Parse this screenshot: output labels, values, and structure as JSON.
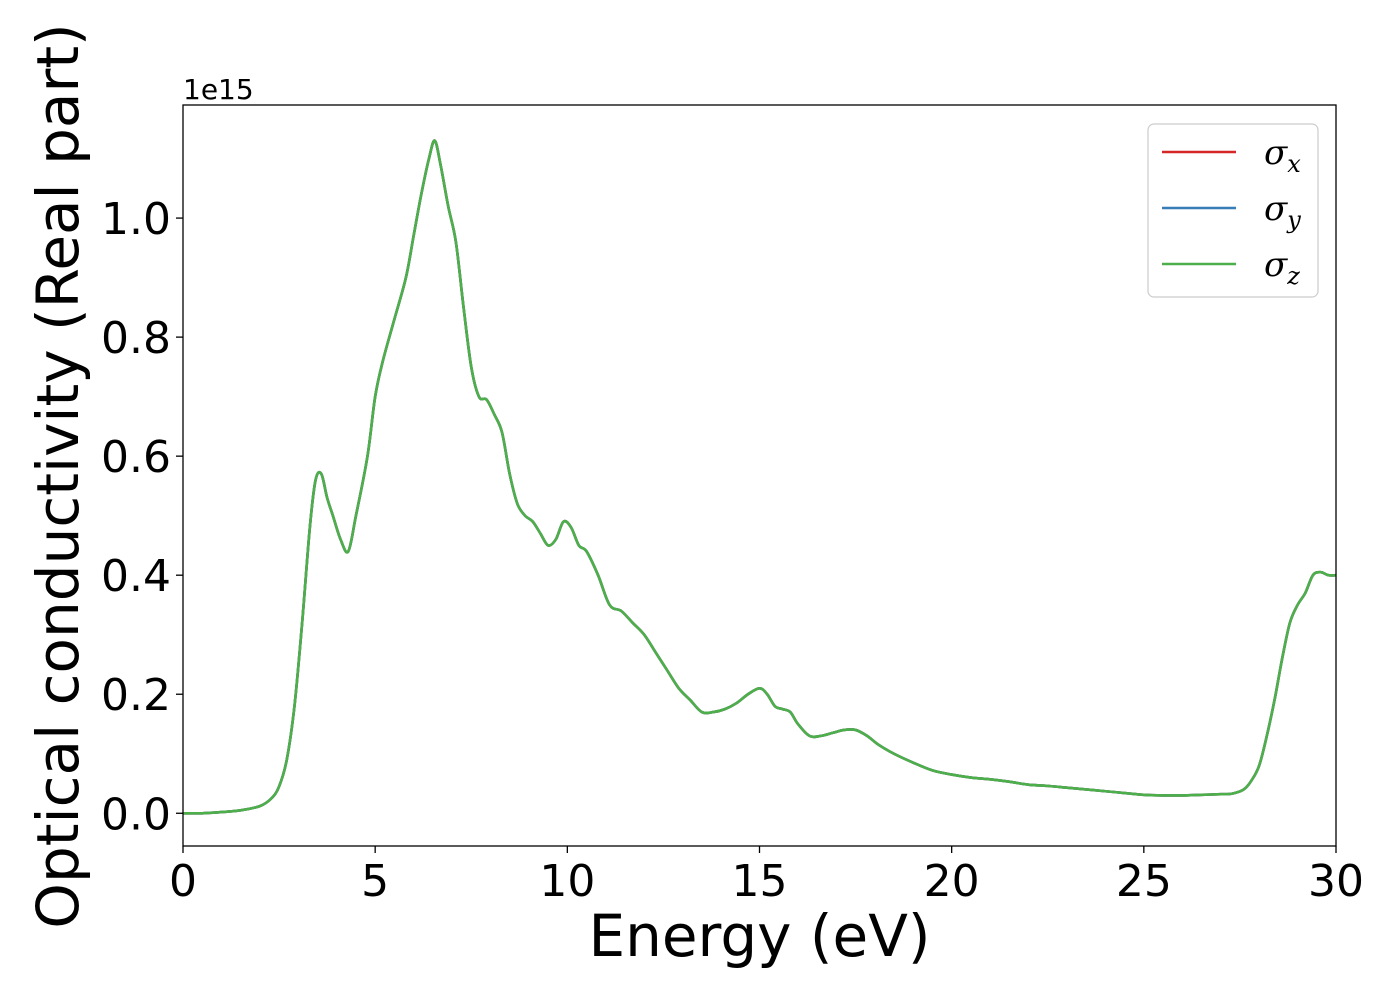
{
  "chart_data": {
    "type": "line",
    "xlabel": "Energy (eV)",
    "ylabel": "Optical conductivity (Real part)",
    "y_offset_label": "1e15",
    "xlim": [
      0,
      30
    ],
    "ylim": [
      -0.055,
      1.19
    ],
    "xticks": [
      0,
      5,
      10,
      15,
      20,
      25,
      30
    ],
    "xtick_labels": [
      "0",
      "5",
      "10",
      "15",
      "20",
      "25",
      "30"
    ],
    "yticks": [
      0.0,
      0.2,
      0.4,
      0.6,
      0.8,
      1.0
    ],
    "ytick_labels": [
      "0.0",
      "0.2",
      "0.4",
      "0.6",
      "0.8",
      "1.0"
    ],
    "grid": false,
    "legend_position": "top-right",
    "x": [
      0,
      0.5,
      1,
      1.5,
      2,
      2.3,
      2.5,
      2.7,
      2.9,
      3.1,
      3.3,
      3.45,
      3.6,
      3.75,
      3.9,
      4.1,
      4.3,
      4.5,
      4.8,
      5.0,
      5.2,
      5.5,
      5.8,
      6.0,
      6.2,
      6.4,
      6.55,
      6.7,
      6.9,
      7.1,
      7.3,
      7.5,
      7.7,
      7.9,
      8.1,
      8.3,
      8.5,
      8.7,
      8.9,
      9.1,
      9.3,
      9.5,
      9.7,
      9.9,
      10.1,
      10.3,
      10.5,
      10.8,
      11.1,
      11.4,
      11.7,
      12.0,
      12.3,
      12.6,
      12.9,
      13.2,
      13.5,
      13.8,
      14.1,
      14.4,
      14.7,
      15.0,
      15.2,
      15.4,
      15.6,
      15.8,
      16.0,
      16.3,
      16.6,
      16.9,
      17.2,
      17.5,
      17.8,
      18.1,
      18.5,
      19.0,
      19.5,
      20.0,
      20.5,
      21.0,
      21.5,
      22.0,
      22.5,
      23.0,
      23.5,
      24.0,
      24.5,
      25.0,
      25.5,
      26.0,
      26.5,
      27.0,
      27.3,
      27.6,
      27.8,
      28.0,
      28.2,
      28.4,
      28.6,
      28.8,
      29.0,
      29.2,
      29.4,
      29.6,
      29.8,
      30.0
    ],
    "series": [
      {
        "name": "σx",
        "color": "#d62728",
        "values": [
          0.0,
          0.0,
          0.002,
          0.005,
          0.012,
          0.025,
          0.045,
          0.09,
          0.18,
          0.32,
          0.48,
          0.56,
          0.57,
          0.53,
          0.5,
          0.46,
          0.44,
          0.5,
          0.6,
          0.7,
          0.76,
          0.83,
          0.9,
          0.97,
          1.04,
          1.1,
          1.13,
          1.09,
          1.02,
          0.96,
          0.85,
          0.75,
          0.7,
          0.695,
          0.67,
          0.64,
          0.57,
          0.52,
          0.5,
          0.49,
          0.47,
          0.45,
          0.46,
          0.49,
          0.48,
          0.45,
          0.44,
          0.4,
          0.35,
          0.34,
          0.32,
          0.3,
          0.27,
          0.24,
          0.21,
          0.19,
          0.17,
          0.17,
          0.175,
          0.185,
          0.2,
          0.21,
          0.2,
          0.18,
          0.175,
          0.17,
          0.15,
          0.13,
          0.13,
          0.135,
          0.14,
          0.14,
          0.13,
          0.115,
          0.1,
          0.085,
          0.072,
          0.065,
          0.06,
          0.057,
          0.053,
          0.048,
          0.046,
          0.043,
          0.04,
          0.037,
          0.034,
          0.031,
          0.03,
          0.03,
          0.031,
          0.032,
          0.033,
          0.04,
          0.055,
          0.08,
          0.13,
          0.19,
          0.26,
          0.32,
          0.35,
          0.37,
          0.4,
          0.405,
          0.4,
          0.4
        ]
      },
      {
        "name": "σy",
        "color": "#377eb8",
        "values": [
          0.0,
          0.0,
          0.002,
          0.005,
          0.012,
          0.025,
          0.045,
          0.09,
          0.18,
          0.32,
          0.48,
          0.56,
          0.57,
          0.53,
          0.5,
          0.46,
          0.44,
          0.5,
          0.6,
          0.7,
          0.76,
          0.83,
          0.9,
          0.97,
          1.04,
          1.1,
          1.13,
          1.09,
          1.02,
          0.96,
          0.85,
          0.75,
          0.7,
          0.695,
          0.67,
          0.64,
          0.57,
          0.52,
          0.5,
          0.49,
          0.47,
          0.45,
          0.46,
          0.49,
          0.48,
          0.45,
          0.44,
          0.4,
          0.35,
          0.34,
          0.32,
          0.3,
          0.27,
          0.24,
          0.21,
          0.19,
          0.17,
          0.17,
          0.175,
          0.185,
          0.2,
          0.21,
          0.2,
          0.18,
          0.175,
          0.17,
          0.15,
          0.13,
          0.13,
          0.135,
          0.14,
          0.14,
          0.13,
          0.115,
          0.1,
          0.085,
          0.072,
          0.065,
          0.06,
          0.057,
          0.053,
          0.048,
          0.046,
          0.043,
          0.04,
          0.037,
          0.034,
          0.031,
          0.03,
          0.03,
          0.031,
          0.032,
          0.033,
          0.04,
          0.055,
          0.08,
          0.13,
          0.19,
          0.26,
          0.32,
          0.35,
          0.37,
          0.4,
          0.405,
          0.4,
          0.4
        ]
      },
      {
        "name": "σz",
        "color": "#4daf4a",
        "values": [
          0.0,
          0.0,
          0.002,
          0.005,
          0.012,
          0.025,
          0.045,
          0.09,
          0.18,
          0.32,
          0.48,
          0.56,
          0.57,
          0.53,
          0.5,
          0.46,
          0.44,
          0.5,
          0.6,
          0.7,
          0.76,
          0.83,
          0.9,
          0.97,
          1.04,
          1.1,
          1.13,
          1.09,
          1.02,
          0.96,
          0.85,
          0.75,
          0.7,
          0.695,
          0.67,
          0.64,
          0.57,
          0.52,
          0.5,
          0.49,
          0.47,
          0.45,
          0.46,
          0.49,
          0.48,
          0.45,
          0.44,
          0.4,
          0.35,
          0.34,
          0.32,
          0.3,
          0.27,
          0.24,
          0.21,
          0.19,
          0.17,
          0.17,
          0.175,
          0.185,
          0.2,
          0.21,
          0.2,
          0.18,
          0.175,
          0.17,
          0.15,
          0.13,
          0.13,
          0.135,
          0.14,
          0.14,
          0.13,
          0.115,
          0.1,
          0.085,
          0.072,
          0.065,
          0.06,
          0.057,
          0.053,
          0.048,
          0.046,
          0.043,
          0.04,
          0.037,
          0.034,
          0.031,
          0.03,
          0.03,
          0.031,
          0.032,
          0.033,
          0.04,
          0.055,
          0.08,
          0.13,
          0.19,
          0.26,
          0.32,
          0.35,
          0.37,
          0.4,
          0.405,
          0.4,
          0.4
        ]
      }
    ],
    "legend": [
      {
        "symbol": "σ",
        "subscript": "x",
        "color": "#d62728"
      },
      {
        "symbol": "σ",
        "subscript": "y",
        "color": "#377eb8"
      },
      {
        "symbol": "σ",
        "subscript": "z",
        "color": "#4daf4a"
      }
    ]
  }
}
